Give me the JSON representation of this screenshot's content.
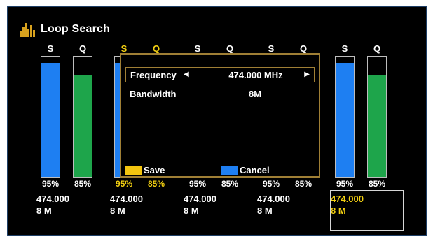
{
  "app": {
    "title": "Loop Search",
    "logo_icon": "equalizer-bars-icon"
  },
  "labels": {
    "signal": "S",
    "quality": "Q"
  },
  "colors": {
    "signal_bar": "#1e7ff2",
    "quality_bar": "#1ea54b",
    "highlight_text": "#f3d011",
    "dialog_border": "#9f7f35",
    "save_key": "#f3c50f",
    "cancel_key": "#1e7ff2"
  },
  "channels": [
    {
      "signal_pct": "95%",
      "quality_pct": "85%",
      "signal_level": 0.95,
      "quality_level": 0.85,
      "frequency": "474.000",
      "bandwidth": "8 M",
      "highlighted": false
    },
    {
      "signal_pct": "95%",
      "quality_pct": "85%",
      "signal_level": 0.95,
      "quality_level": 0.85,
      "frequency": "474.000",
      "bandwidth": "8 M",
      "highlighted": true
    },
    {
      "signal_pct": "95%",
      "quality_pct": "85%",
      "signal_level": 0.95,
      "quality_level": 0.85,
      "frequency": "474.000",
      "bandwidth": "8 M",
      "highlighted": false
    },
    {
      "signal_pct": "95%",
      "quality_pct": "85%",
      "signal_level": 0.95,
      "quality_level": 0.85,
      "frequency": "474.000",
      "bandwidth": "8 M",
      "highlighted": false
    },
    {
      "signal_pct": "95%",
      "quality_pct": "85%",
      "signal_level": 0.95,
      "quality_level": 0.85,
      "frequency": "474.000",
      "bandwidth": "8 M",
      "highlighted": true,
      "selected": true
    }
  ],
  "dialog": {
    "frequency_label": "Frequency",
    "frequency_value": "474.000 MHz",
    "bandwidth_label": "Bandwidth",
    "bandwidth_value": "8M",
    "left_arrow": "◀",
    "right_arrow": "▶",
    "save_label": "Save",
    "cancel_label": "Cancel"
  }
}
